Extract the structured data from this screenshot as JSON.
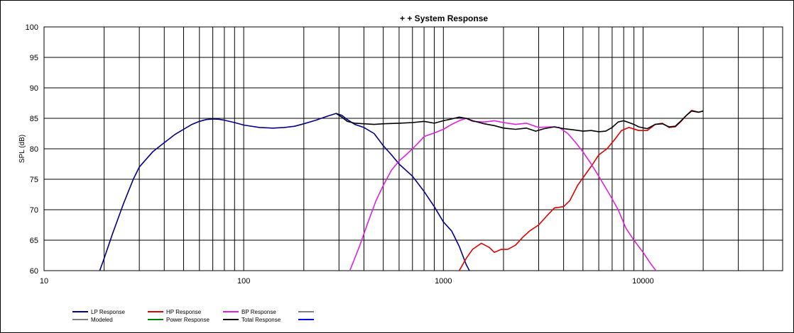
{
  "chart_data": {
    "type": "line",
    "title": "+ +   System Response",
    "xlabel": "",
    "ylabel": "SPL (dB)",
    "xscale": "log",
    "xlim": [
      10,
      50000
    ],
    "ylim": [
      60,
      100
    ],
    "yticks": [
      60,
      65,
      70,
      75,
      80,
      85,
      90,
      95,
      100
    ],
    "xtick_labels": [
      {
        "x": 10,
        "label": "10"
      },
      {
        "x": 100,
        "label": "100"
      },
      {
        "x": 1000,
        "label": "1000"
      },
      {
        "x": 10000,
        "label": "10000"
      }
    ],
    "grid": true,
    "legend_position": "bottom-left",
    "legend": [
      {
        "name": "LP Response",
        "color": "#00008B"
      },
      {
        "name": "HP Response",
        "color": "#E00000"
      },
      {
        "name": "BP Response",
        "color": "#E020E0"
      },
      {
        "name": "",
        "color": "#808080"
      },
      {
        "name": "Modeled",
        "color": "#808080"
      },
      {
        "name": "Power Response",
        "color": "#008000"
      },
      {
        "name": "Total Response",
        "color": "#000000"
      },
      {
        "name": "",
        "color": "#0000FF"
      }
    ],
    "series": [
      {
        "name": "LP Response",
        "color": "#00008B",
        "points": [
          [
            19,
            60
          ],
          [
            20,
            62
          ],
          [
            22,
            66
          ],
          [
            25,
            71
          ],
          [
            28,
            75
          ],
          [
            30,
            77
          ],
          [
            35,
            79.5
          ],
          [
            40,
            81
          ],
          [
            45,
            82.3
          ],
          [
            50,
            83.2
          ],
          [
            55,
            84
          ],
          [
            60,
            84.5
          ],
          [
            65,
            84.8
          ],
          [
            70,
            84.9
          ],
          [
            75,
            84.85
          ],
          [
            80,
            84.7
          ],
          [
            90,
            84.3
          ],
          [
            100,
            83.9
          ],
          [
            120,
            83.5
          ],
          [
            140,
            83.4
          ],
          [
            160,
            83.5
          ],
          [
            180,
            83.7
          ],
          [
            200,
            84.1
          ],
          [
            230,
            84.7
          ],
          [
            260,
            85.3
          ],
          [
            290,
            85.8
          ],
          [
            310,
            85.5
          ],
          [
            330,
            84.8
          ],
          [
            360,
            84
          ],
          [
            400,
            83.5
          ],
          [
            450,
            82.5
          ],
          [
            500,
            80.5
          ],
          [
            550,
            79
          ],
          [
            600,
            77.5
          ],
          [
            700,
            75.5
          ],
          [
            800,
            73
          ],
          [
            900,
            70.5
          ],
          [
            1000,
            68
          ],
          [
            1100,
            66.5
          ],
          [
            1200,
            64
          ],
          [
            1300,
            61
          ],
          [
            1350,
            60
          ]
        ]
      },
      {
        "name": "HP Response",
        "color": "#E00000",
        "points": [
          [
            1200,
            60
          ],
          [
            1300,
            62
          ],
          [
            1400,
            63.5
          ],
          [
            1550,
            64.5
          ],
          [
            1700,
            63.8
          ],
          [
            1800,
            63
          ],
          [
            1950,
            63.5
          ],
          [
            2100,
            63.5
          ],
          [
            2300,
            64.2
          ],
          [
            2500,
            65.5
          ],
          [
            2700,
            66.5
          ],
          [
            3000,
            67.5
          ],
          [
            3300,
            69
          ],
          [
            3600,
            70.3
          ],
          [
            4000,
            70.5
          ],
          [
            4300,
            71.5
          ],
          [
            4700,
            74
          ],
          [
            5200,
            76
          ],
          [
            5600,
            77.5
          ],
          [
            6000,
            79
          ],
          [
            6600,
            80
          ],
          [
            7200,
            81.5
          ],
          [
            7800,
            83
          ],
          [
            8500,
            83.5
          ],
          [
            9500,
            83
          ],
          [
            10500,
            83
          ],
          [
            11500,
            84
          ],
          [
            12500,
            84.2
          ],
          [
            13500,
            83.5
          ],
          [
            14500,
            83.6
          ],
          [
            15500,
            84.5
          ],
          [
            16500,
            85.5
          ],
          [
            17500,
            86.3
          ],
          [
            19000,
            86
          ],
          [
            20000,
            86.2
          ]
        ]
      },
      {
        "name": "BP Response",
        "color": "#E020E0",
        "points": [
          [
            340,
            60
          ],
          [
            380,
            64
          ],
          [
            420,
            68
          ],
          [
            460,
            71.5
          ],
          [
            500,
            74
          ],
          [
            550,
            76.5
          ],
          [
            600,
            78
          ],
          [
            650,
            79
          ],
          [
            700,
            80
          ],
          [
            750,
            81
          ],
          [
            800,
            82
          ],
          [
            900,
            82.6
          ],
          [
            1000,
            83.2
          ],
          [
            1100,
            84
          ],
          [
            1200,
            84.6
          ],
          [
            1300,
            85
          ],
          [
            1400,
            84.5
          ],
          [
            1600,
            84.4
          ],
          [
            1800,
            84.6
          ],
          [
            2000,
            84.3
          ],
          [
            2300,
            84
          ],
          [
            2600,
            84.2
          ],
          [
            3000,
            83.5
          ],
          [
            3500,
            83.6
          ],
          [
            3800,
            83.5
          ],
          [
            4200,
            82.5
          ],
          [
            4600,
            81
          ],
          [
            5000,
            79.5
          ],
          [
            5500,
            77.5
          ],
          [
            6000,
            75.5
          ],
          [
            6800,
            72.5
          ],
          [
            7500,
            70
          ],
          [
            8200,
            67
          ],
          [
            9000,
            65
          ],
          [
            10000,
            63
          ],
          [
            11000,
            61
          ],
          [
            11600,
            60
          ]
        ]
      },
      {
        "name": "Total Response",
        "color": "#000000",
        "points": [
          [
            290,
            85.8
          ],
          [
            310,
            85.2
          ],
          [
            330,
            84.5
          ],
          [
            360,
            84.2
          ],
          [
            400,
            84.1
          ],
          [
            450,
            84
          ],
          [
            500,
            84.1
          ],
          [
            600,
            84.2
          ],
          [
            700,
            84.3
          ],
          [
            800,
            84.5
          ],
          [
            900,
            84.2
          ],
          [
            1000,
            84.6
          ],
          [
            1100,
            84.9
          ],
          [
            1200,
            85.2
          ],
          [
            1300,
            85
          ],
          [
            1400,
            84.6
          ],
          [
            1600,
            84.1
          ],
          [
            1800,
            83.8
          ],
          [
            2000,
            83.4
          ],
          [
            2300,
            83.2
          ],
          [
            2600,
            83.4
          ],
          [
            2900,
            82.9
          ],
          [
            3200,
            83.3
          ],
          [
            3600,
            83.6
          ],
          [
            4000,
            83.3
          ],
          [
            4500,
            83.1
          ],
          [
            5000,
            82.9
          ],
          [
            5500,
            83
          ],
          [
            6000,
            82.8
          ],
          [
            6500,
            82.9
          ],
          [
            7000,
            83.5
          ],
          [
            7500,
            84.4
          ],
          [
            8000,
            84.6
          ],
          [
            8500,
            84.3
          ],
          [
            9000,
            84
          ],
          [
            9500,
            83.6
          ],
          [
            10500,
            83.3
          ],
          [
            11500,
            84
          ],
          [
            12500,
            84.1
          ],
          [
            13500,
            83.6
          ],
          [
            14500,
            83.7
          ],
          [
            15500,
            84.6
          ],
          [
            16500,
            85.5
          ],
          [
            17500,
            86.2
          ],
          [
            19000,
            86
          ],
          [
            20000,
            86.2
          ]
        ]
      }
    ]
  }
}
